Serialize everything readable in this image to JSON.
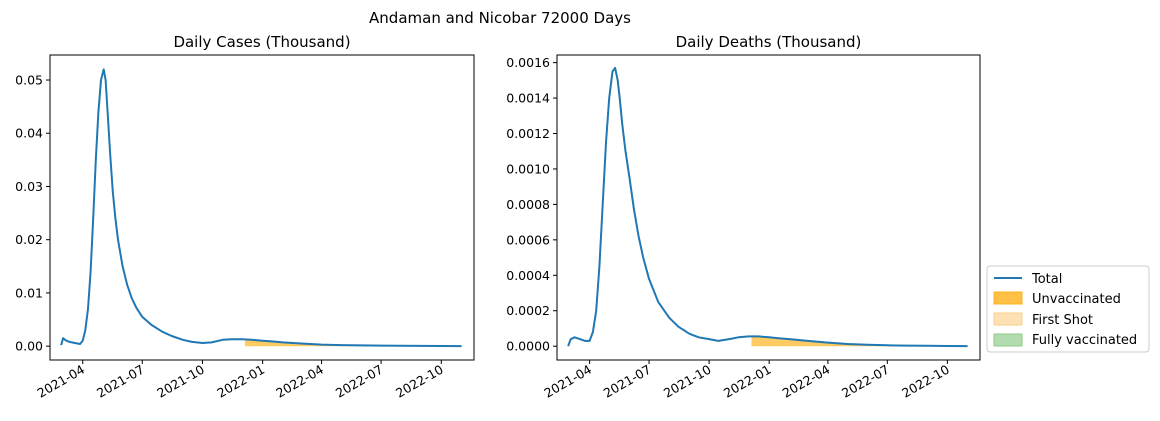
{
  "figure": {
    "title": "Andaman and Nicobar 72000 Days"
  },
  "legend": {
    "placement": "right-bottom",
    "entries": [
      {
        "name": "Total",
        "kind": "line",
        "color": "#1f77b4"
      },
      {
        "name": "Unvaccinated",
        "kind": "patch",
        "color": "#ffc145"
      },
      {
        "name": "First Shot",
        "kind": "patch",
        "color": "#fde1b4"
      },
      {
        "name": "Fully vaccinated",
        "kind": "patch",
        "color": "#b3dbb0"
      }
    ]
  },
  "chart_data": [
    {
      "type": "line",
      "title": "Daily Cases (Thousand)",
      "xlabel": "",
      "ylabel": "",
      "x_type": "date",
      "xlim": [
        "2021-02-10",
        "2022-11-20"
      ],
      "ylim": [
        -0.0026,
        0.0547
      ],
      "x_ticks": [
        "2021-04",
        "2021-07",
        "2021-10",
        "2022-01",
        "2022-04",
        "2022-07",
        "2022-10"
      ],
      "y_ticks": [
        "0.00",
        "0.01",
        "0.02",
        "0.03",
        "0.04",
        "0.05"
      ],
      "grid": false,
      "series": [
        {
          "name": "Total",
          "kind": "line",
          "color": "#1f77b4",
          "x": [
            "2021-02-27",
            "2021-03-02",
            "2021-03-06",
            "2021-03-12",
            "2021-03-20",
            "2021-03-28",
            "2021-04-01",
            "2021-04-05",
            "2021-04-09",
            "2021-04-13",
            "2021-04-17",
            "2021-04-21",
            "2021-04-25",
            "2021-04-29",
            "2021-05-03",
            "2021-05-06",
            "2021-05-09",
            "2021-05-13",
            "2021-05-17",
            "2021-05-21",
            "2021-05-25",
            "2021-06-01",
            "2021-06-08",
            "2021-06-15",
            "2021-06-22",
            "2021-07-01",
            "2021-07-15",
            "2021-08-01",
            "2021-08-15",
            "2021-09-01",
            "2021-09-15",
            "2021-10-01",
            "2021-10-15",
            "2021-11-01",
            "2021-11-15",
            "2021-12-01",
            "2021-12-15",
            "2022-01-01",
            "2022-01-15",
            "2022-02-01",
            "2022-03-01",
            "2022-04-01",
            "2022-05-01",
            "2022-06-01",
            "2022-07-01",
            "2022-08-01",
            "2022-09-01",
            "2022-10-01",
            "2022-11-01"
          ],
          "y": [
            0.0002,
            0.0015,
            0.0011,
            0.0008,
            0.0006,
            0.0004,
            0.001,
            0.003,
            0.007,
            0.014,
            0.024,
            0.035,
            0.044,
            0.05,
            0.052,
            0.05,
            0.044,
            0.036,
            0.029,
            0.024,
            0.02,
            0.015,
            0.0115,
            0.009,
            0.0072,
            0.0055,
            0.004,
            0.0027,
            0.0019,
            0.0012,
            0.0008,
            0.0006,
            0.0007,
            0.0012,
            0.0013,
            0.0013,
            0.0012,
            0.001,
            0.0009,
            0.0007,
            0.0005,
            0.0003,
            0.0002,
            0.00015,
            0.0001,
            7e-05,
            5e-05,
            3e-05,
            2e-05
          ]
        },
        {
          "name": "Unvaccinated",
          "kind": "area",
          "color": "#ffc145",
          "x": [
            "2021-12-05",
            "2021-12-15",
            "2022-01-01",
            "2022-01-15",
            "2022-02-01",
            "2022-03-01",
            "2022-04-01",
            "2022-05-01",
            "2022-06-01",
            "2022-07-01",
            "2022-08-01",
            "2022-09-01",
            "2022-10-01",
            "2022-11-01"
          ],
          "y": [
            0.0013,
            0.0012,
            0.001,
            0.0009,
            0.0007,
            0.0005,
            0.0003,
            0.0002,
            0.00015,
            0.0001,
            7e-05,
            5e-05,
            3e-05,
            2e-05
          ]
        }
      ]
    },
    {
      "type": "line",
      "title": "Daily Deaths (Thousand)",
      "xlabel": "",
      "ylabel": "",
      "x_type": "date",
      "xlim": [
        "2021-02-10",
        "2022-11-20"
      ],
      "ylim": [
        -7.8e-05,
        0.001643
      ],
      "x_ticks": [
        "2021-04",
        "2021-07",
        "2021-10",
        "2022-01",
        "2022-04",
        "2022-07",
        "2022-10"
      ],
      "y_ticks": [
        "0.0000",
        "0.0002",
        "0.0004",
        "0.0006",
        "0.0008",
        "0.0010",
        "0.0012",
        "0.0014",
        "0.0016"
      ],
      "grid": false,
      "series": [
        {
          "name": "Total",
          "kind": "line",
          "color": "#1f77b4",
          "x": [
            "2021-02-27",
            "2021-03-03",
            "2021-03-09",
            "2021-03-17",
            "2021-03-25",
            "2021-04-01",
            "2021-04-06",
            "2021-04-11",
            "2021-04-16",
            "2021-04-21",
            "2021-04-26",
            "2021-05-01",
            "2021-05-06",
            "2021-05-10",
            "2021-05-14",
            "2021-05-17",
            "2021-05-21",
            "2021-05-26",
            "2021-06-01",
            "2021-06-08",
            "2021-06-15",
            "2021-06-22",
            "2021-07-01",
            "2021-07-15",
            "2021-08-01",
            "2021-08-15",
            "2021-09-01",
            "2021-09-15",
            "2021-10-01",
            "2021-10-15",
            "2021-11-01",
            "2021-11-15",
            "2021-12-01",
            "2021-12-15",
            "2022-01-01",
            "2022-01-15",
            "2022-02-01",
            "2022-03-01",
            "2022-04-01",
            "2022-05-01",
            "2022-06-01",
            "2022-07-01",
            "2022-08-01",
            "2022-09-01",
            "2022-10-01",
            "2022-11-01"
          ],
          "y": [
            0.0,
            4e-05,
            5e-05,
            4e-05,
            3e-05,
            3e-05,
            8e-05,
            0.0002,
            0.00045,
            0.0008,
            0.00115,
            0.0014,
            0.00155,
            0.00157,
            0.0015,
            0.0014,
            0.00125,
            0.0011,
            0.00095,
            0.00077,
            0.00062,
            0.0005,
            0.00038,
            0.00025,
            0.00016,
            0.00011,
            7e-05,
            5e-05,
            4e-05,
            3e-05,
            4e-05,
            5e-05,
            5.5e-05,
            5.5e-05,
            5e-05,
            4.5e-05,
            4e-05,
            3e-05,
            2e-05,
            1.2e-05,
            8e-06,
            5e-06,
            3e-06,
            2e-06,
            1e-06,
            5e-07
          ]
        },
        {
          "name": "Unvaccinated",
          "kind": "area",
          "color": "#ffc145",
          "x": [
            "2021-12-05",
            "2021-12-15",
            "2022-01-01",
            "2022-01-15",
            "2022-02-01",
            "2022-03-01",
            "2022-04-01",
            "2022-05-01",
            "2022-06-01",
            "2022-07-01",
            "2022-08-01",
            "2022-09-01",
            "2022-10-01",
            "2022-11-01"
          ],
          "y": [
            5.5e-05,
            5.5e-05,
            5e-05,
            4.5e-05,
            4e-05,
            3e-05,
            2e-05,
            1.2e-05,
            8e-06,
            5e-06,
            3e-06,
            2e-06,
            1e-06,
            5e-07
          ]
        }
      ]
    }
  ]
}
